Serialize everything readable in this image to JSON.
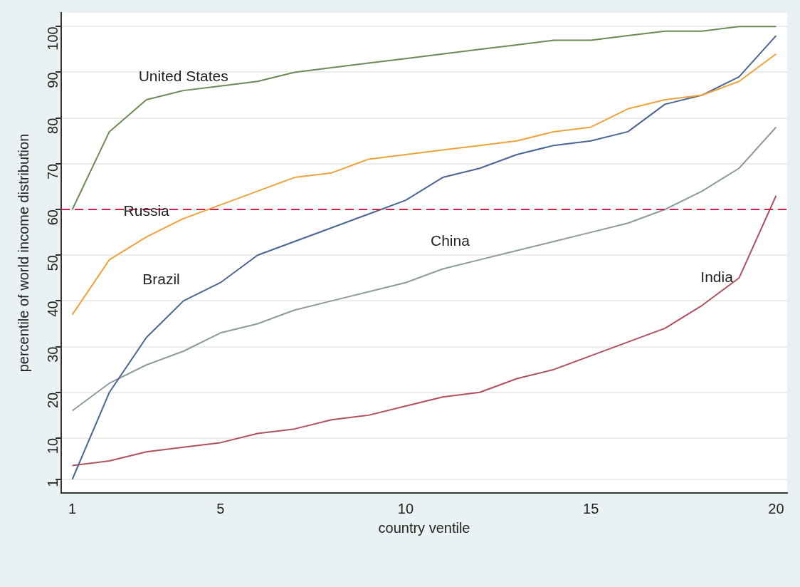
{
  "chart_data": {
    "type": "line",
    "xlabel": "country ventile",
    "ylabel": "percentile of world income distribution",
    "x": [
      1,
      2,
      3,
      4,
      5,
      6,
      7,
      8,
      9,
      10,
      11,
      12,
      13,
      14,
      15,
      16,
      17,
      18,
      19,
      20
    ],
    "series": [
      {
        "name": "United States",
        "color": "#6b8a55",
        "values": [
          60,
          77,
          84,
          86,
          87,
          88,
          90,
          91,
          92,
          93,
          94,
          95,
          96,
          97,
          97,
          98,
          99,
          99,
          100,
          100
        ]
      },
      {
        "name": "Russia",
        "color": "#f0a23a",
        "values": [
          37,
          49,
          54,
          58,
          61,
          64,
          67,
          68,
          71,
          72,
          73,
          74,
          75,
          77,
          78,
          82,
          84,
          85,
          88,
          94
        ]
      },
      {
        "name": "Brazil",
        "color": "#4a6592",
        "values": [
          1,
          20,
          32,
          40,
          44,
          50,
          53,
          56,
          59,
          62,
          67,
          69,
          72,
          74,
          75,
          77,
          83,
          85,
          89,
          98
        ]
      },
      {
        "name": "China",
        "color": "#8c9c9a",
        "values": [
          16,
          22,
          26,
          29,
          33,
          35,
          38,
          40,
          42,
          44,
          47,
          49,
          51,
          53,
          55,
          57,
          60,
          64,
          69,
          78
        ]
      },
      {
        "name": "India",
        "color": "#b0505e",
        "values": [
          4,
          5,
          7,
          8,
          9,
          11,
          12,
          14,
          15,
          17,
          19,
          20,
          23,
          25,
          28,
          31,
          34,
          39,
          45,
          63
        ]
      }
    ],
    "xlim": [
      0.7,
      20.3
    ],
    "xticks": [
      1,
      5,
      10,
      15,
      20
    ],
    "ylim": [
      -2,
      103
    ],
    "yticks": [
      1,
      10,
      20,
      30,
      40,
      50,
      60,
      70,
      80,
      90,
      100
    ],
    "ref_lines": [
      {
        "axis": "y",
        "value": 60,
        "color": "#d0204a",
        "line_style": "dashed"
      }
    ],
    "grid": "y",
    "legend": false,
    "marker": "none",
    "line_style": "solid"
  }
}
